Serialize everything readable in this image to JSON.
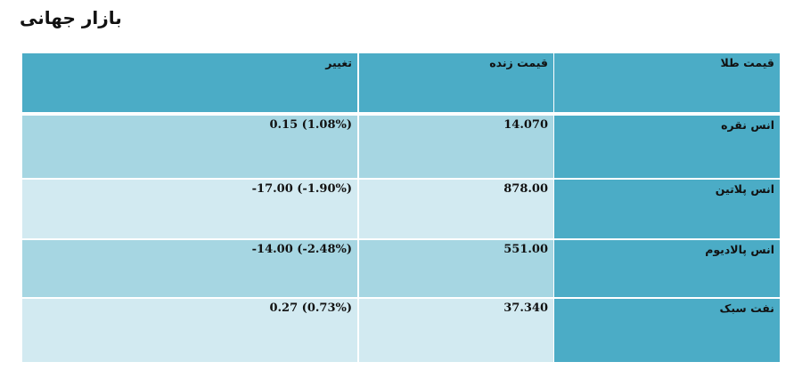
{
  "page": {
    "title": "بازار جهانی"
  },
  "table": {
    "headers": [
      "قیمت طلا",
      "قیمت زنده",
      "تغییر"
    ],
    "rows": [
      {
        "name": "انس نقره",
        "price": "14.070",
        "change": "0.15 (1.08%)"
      },
      {
        "name": "انس پلاتین",
        "price": "878.00",
        "change": "-17.00 (-1.90%)"
      },
      {
        "name": "انس پالادیوم",
        "price": "551.00",
        "change": "-14.00 (-2.48%)"
      },
      {
        "name": "نفت سبک",
        "price": "37.340",
        "change": "0.27 (0.73%)"
      }
    ]
  },
  "colors": {
    "header": "#4bacc6",
    "row_odd": "#a6d6e2",
    "row_even": "#d2eaf1"
  }
}
